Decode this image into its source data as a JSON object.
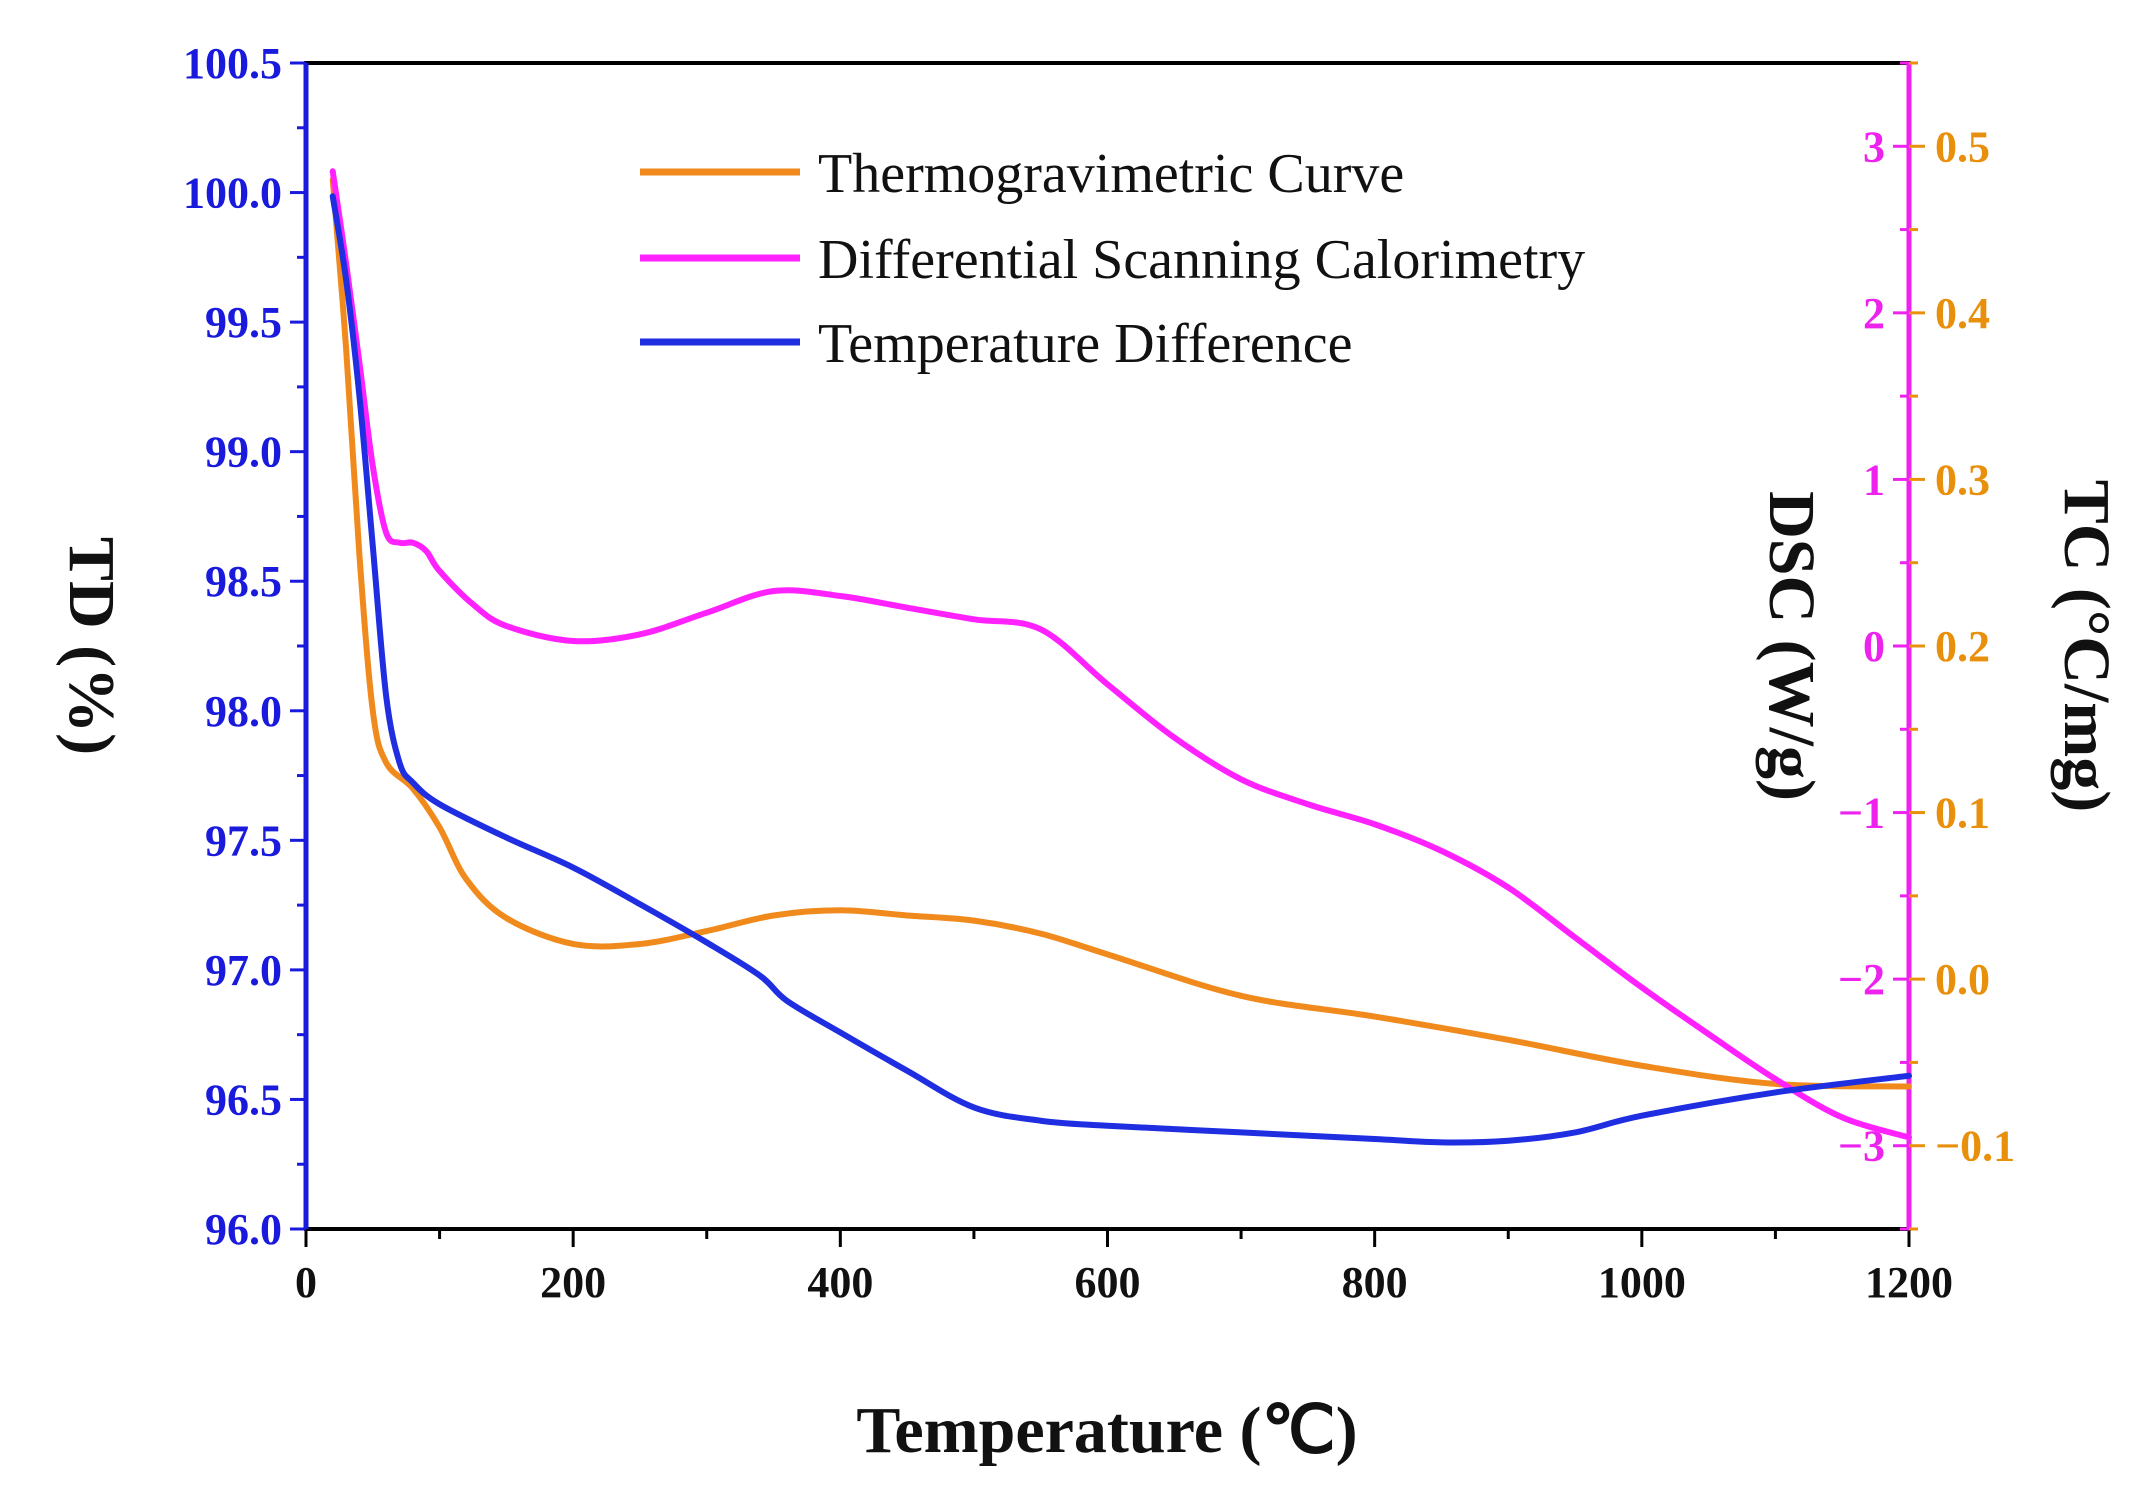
{
  "chart_data": {
    "type": "line",
    "xlabel": "Temperature (℃)",
    "ylabel_left": "TD (%)",
    "ylabel_right_inner": "DSC (W/g)",
    "ylabel_right_outer": "TC (°C/mg)",
    "xlim": [
      0,
      1200
    ],
    "ylim_left": [
      96.0,
      100.5
    ],
    "ylim_right_inner": [
      -3.5,
      3.5
    ],
    "ylim_right_outer": [
      -0.15,
      0.55
    ],
    "x_ticks": [
      "0",
      "200",
      "400",
      "600",
      "800",
      "1000",
      "1200"
    ],
    "y_left_ticks": [
      "96.0",
      "96.5",
      "97.0",
      "97.5",
      "98.0",
      "98.5",
      "99.0",
      "99.5",
      "100.0",
      "100.5"
    ],
    "y_right_inner_ticks": [
      "−3",
      "−2",
      "−1",
      "0",
      "1",
      "2",
      "3"
    ],
    "y_right_outer_ticks": [
      "−0.1",
      "0.0",
      "0.1",
      "0.2",
      "0.3",
      "0.4",
      "0.5"
    ],
    "grid": false,
    "legend_position": "top-center",
    "colors": {
      "left_axis": "#1a1adc",
      "right_inner_axis": "#ee22ee",
      "right_outer_axis": "#e8900c",
      "tg": "#f08a1c",
      "dsc": "#ff22ff",
      "td": "#1f2ee0"
    },
    "series": [
      {
        "name": "Thermogravimetric Curve",
        "axis": "left",
        "x": [
          20,
          30,
          40,
          50,
          60,
          80,
          100,
          120,
          150,
          200,
          250,
          300,
          350,
          400,
          450,
          500,
          550,
          600,
          700,
          800,
          900,
          1000,
          1100,
          1200
        ],
        "values": [
          100.05,
          99.4,
          98.6,
          98.0,
          97.8,
          97.7,
          97.55,
          97.35,
          97.2,
          97.1,
          97.1,
          97.15,
          97.21,
          97.23,
          97.21,
          97.19,
          97.14,
          97.06,
          96.9,
          96.82,
          96.73,
          96.63,
          96.56,
          96.55
        ]
      },
      {
        "name": "Differential Scanning Calorimetry",
        "axis": "right_inner",
        "x": [
          20,
          30,
          40,
          50,
          60,
          70,
          80,
          90,
          100,
          125,
          150,
          200,
          250,
          300,
          350,
          400,
          450,
          500,
          550,
          600,
          650,
          700,
          750,
          800,
          850,
          900,
          950,
          1000,
          1050,
          1100,
          1150,
          1200
        ],
        "values": [
          2.85,
          2.3,
          1.7,
          1.08,
          0.68,
          0.62,
          0.62,
          0.57,
          0.45,
          0.25,
          0.12,
          0.03,
          0.07,
          0.2,
          0.33,
          0.3,
          0.23,
          0.16,
          0.1,
          -0.23,
          -0.55,
          -0.8,
          -0.95,
          -1.07,
          -1.23,
          -1.45,
          -1.75,
          -2.05,
          -2.33,
          -2.6,
          -2.83,
          -2.95
        ]
      },
      {
        "name": "Temperature Difference",
        "axis": "right_outer",
        "x": [
          20,
          30,
          40,
          50,
          60,
          70,
          80,
          100,
          150,
          200,
          250,
          300,
          340,
          360,
          400,
          450,
          500,
          550,
          600,
          700,
          800,
          850,
          900,
          950,
          1000,
          1100,
          1200
        ],
        "values": [
          0.47,
          0.42,
          0.35,
          0.26,
          0.17,
          0.13,
          0.118,
          0.105,
          0.085,
          0.067,
          0.045,
          0.022,
          0.002,
          -0.013,
          -0.032,
          -0.055,
          -0.077,
          -0.085,
          -0.088,
          -0.092,
          -0.096,
          -0.098,
          -0.097,
          -0.092,
          -0.082,
          -0.068,
          -0.058
        ]
      }
    ]
  }
}
